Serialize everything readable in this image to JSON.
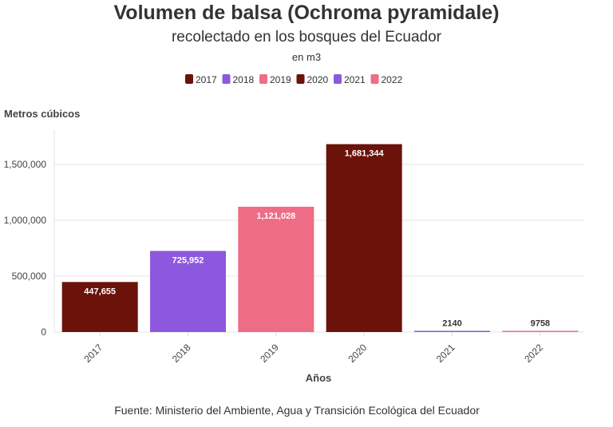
{
  "chart_data": {
    "type": "bar",
    "title": "Volumen de balsa (Ochroma pyramidale)",
    "subtitle": "recolectado en los bosques del Ecuador",
    "unit_note": "en m3",
    "ylabel": "Metros cúbicos",
    "xlabel": "Años",
    "source": "Fuente: Ministerio del Ambiente, Agua y Transición Ecológica del Ecuador",
    "categories": [
      "2017",
      "2018",
      "2019",
      "2020",
      "2021",
      "2022"
    ],
    "values": [
      447655,
      725952,
      1121028,
      1681344,
      2140,
      9758
    ],
    "data_labels": [
      "447,655",
      "725,952",
      "1,121,028",
      "1,681,344",
      "2140",
      "9758"
    ],
    "colors": [
      "#6b120b",
      "#8d58dd",
      "#ee6c86",
      "#6b120b",
      "#8d58dd",
      "#ee6c86"
    ],
    "ylim": [
      0,
      1790000
    ],
    "yticks": [
      0,
      500000,
      1000000,
      1500000
    ],
    "ytick_labels": [
      "0",
      "500,000",
      "1,000,000",
      "1,500,000"
    ],
    "legend": {
      "placement": "top-center",
      "entries": [
        "2017",
        "2018",
        "2019",
        "2020",
        "2021",
        "2022"
      ]
    },
    "grid": true
  }
}
